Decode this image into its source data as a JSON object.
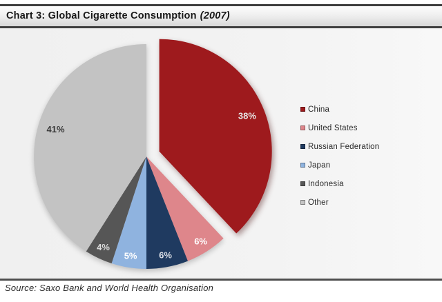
{
  "title_prefix": "Chart 3: Global Cigarette Consumption",
  "title_year": "(2007)",
  "source": "Source: Saxo Bank and World Health Organisation",
  "chart_data": {
    "type": "pie",
    "title": "Chart 3: Global Cigarette Consumption (2007)",
    "start_angle_deg": 0,
    "direction": "clockwise",
    "legend_position": "right",
    "slices": [
      {
        "label": "China",
        "value": 38,
        "value_label": "38%",
        "color": "#9e1a1d",
        "label_color": "#e8e8e8",
        "exploded": true
      },
      {
        "label": "United States",
        "value": 6,
        "value_label": "6%",
        "color": "#de868b",
        "label_color": "#ffffff",
        "exploded": false
      },
      {
        "label": "Russian Federation",
        "value": 6,
        "value_label": "6%",
        "color": "#1f3a60",
        "label_color": "#dbdfe7",
        "exploded": false
      },
      {
        "label": "Japan",
        "value": 5,
        "value_label": "5%",
        "color": "#8fb3df",
        "label_color": "#ffffff",
        "exploded": false
      },
      {
        "label": "Indonesia",
        "value": 4,
        "value_label": "4%",
        "color": "#565656",
        "label_color": "#dcdcdc",
        "exploded": false
      },
      {
        "label": "Other",
        "value": 41,
        "value_label": "41%",
        "color": "#c3c3c3",
        "label_color": "#3a3a3a",
        "exploded": false
      }
    ]
  }
}
